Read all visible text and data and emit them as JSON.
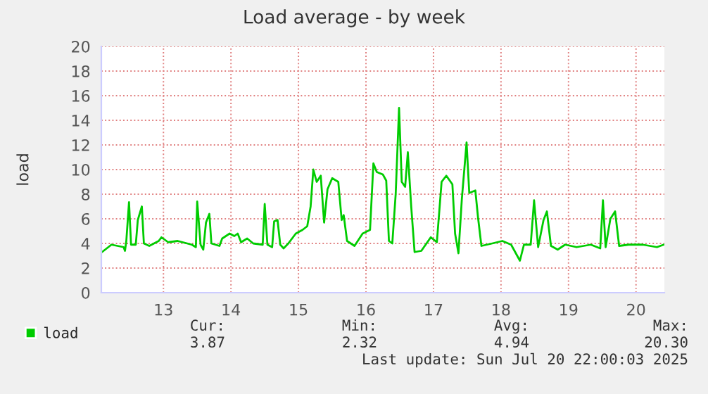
{
  "chart_data": {
    "type": "line",
    "title": "Load average - by week",
    "ylabel": "load",
    "x": [
      12.09,
      12.23,
      12.41,
      12.43,
      12.45,
      12.49,
      12.52,
      12.59,
      12.62,
      12.68,
      12.71,
      12.79,
      12.93,
      12.97,
      13.07,
      13.21,
      13.42,
      13.48,
      13.5,
      13.55,
      13.59,
      13.63,
      13.68,
      13.71,
      13.83,
      13.87,
      13.98,
      14.05,
      14.1,
      14.15,
      14.24,
      14.33,
      14.47,
      14.5,
      14.54,
      14.61,
      14.64,
      14.69,
      14.73,
      14.78,
      14.85,
      14.96,
      15.06,
      15.13,
      15.18,
      15.22,
      15.27,
      15.33,
      15.38,
      15.43,
      15.5,
      15.59,
      15.64,
      15.67,
      15.72,
      15.83,
      15.95,
      16.06,
      16.11,
      16.16,
      16.25,
      16.3,
      16.34,
      16.39,
      16.44,
      16.49,
      16.53,
      16.58,
      16.62,
      16.67,
      16.72,
      16.82,
      16.96,
      17.05,
      17.12,
      17.19,
      17.28,
      17.32,
      17.37,
      17.42,
      17.49,
      17.53,
      17.62,
      17.66,
      17.71,
      17.87,
      18.02,
      18.15,
      18.28,
      18.34,
      18.44,
      18.49,
      18.55,
      18.63,
      18.68,
      18.74,
      18.84,
      18.95,
      19.12,
      19.33,
      19.47,
      19.51,
      19.55,
      19.62,
      19.69,
      19.75,
      19.89,
      20.1,
      20.31,
      20.41
    ],
    "series": [
      {
        "name": "load",
        "color": "#00cc00",
        "values": [
          3.3,
          3.9,
          3.7,
          3.4,
          4.2,
          7.35,
          3.9,
          3.9,
          5.9,
          7.0,
          4.0,
          3.8,
          4.2,
          4.5,
          4.1,
          4.2,
          3.9,
          3.7,
          7.4,
          3.9,
          3.5,
          5.7,
          6.4,
          4.0,
          3.8,
          4.4,
          4.8,
          4.6,
          4.8,
          4.1,
          4.4,
          4.0,
          3.9,
          7.2,
          3.9,
          3.7,
          5.8,
          5.9,
          3.9,
          3.6,
          4.0,
          4.8,
          5.1,
          5.4,
          7.0,
          10.0,
          9.0,
          9.5,
          5.7,
          8.4,
          9.3,
          9.0,
          5.9,
          6.3,
          4.2,
          3.8,
          4.8,
          5.1,
          10.5,
          9.8,
          9.6,
          9.1,
          4.2,
          4.0,
          8.0,
          15.0,
          9.0,
          8.6,
          11.4,
          7.0,
          3.3,
          3.4,
          4.5,
          4.1,
          9.0,
          9.5,
          8.8,
          4.8,
          3.2,
          7.6,
          12.2,
          8.1,
          8.3,
          6.1,
          3.8,
          4.0,
          4.2,
          3.9,
          2.6,
          3.9,
          3.9,
          7.5,
          3.7,
          5.9,
          6.6,
          3.8,
          3.5,
          3.9,
          3.7,
          3.9,
          3.6,
          7.5,
          3.7,
          6.0,
          6.6,
          3.8,
          3.9,
          3.9,
          3.7,
          3.9
        ]
      }
    ],
    "xlim": [
      12.08,
      20.42
    ],
    "xticks": [
      13,
      14,
      15,
      16,
      17,
      18,
      19,
      20
    ],
    "ylim": [
      0,
      20
    ],
    "yticks": [
      0,
      2,
      4,
      6,
      8,
      10,
      12,
      14,
      16,
      18,
      20
    ],
    "grid": true,
    "legend": "bottom left",
    "marker": "none",
    "line_style": "solid",
    "annotations": [
      "Cur:",
      "Min:",
      "Avg:",
      "Max:",
      "3.87",
      "2.32",
      "4.94",
      "20.30",
      "Last update: Sun Jul 20 22:00:03 2025"
    ]
  }
}
